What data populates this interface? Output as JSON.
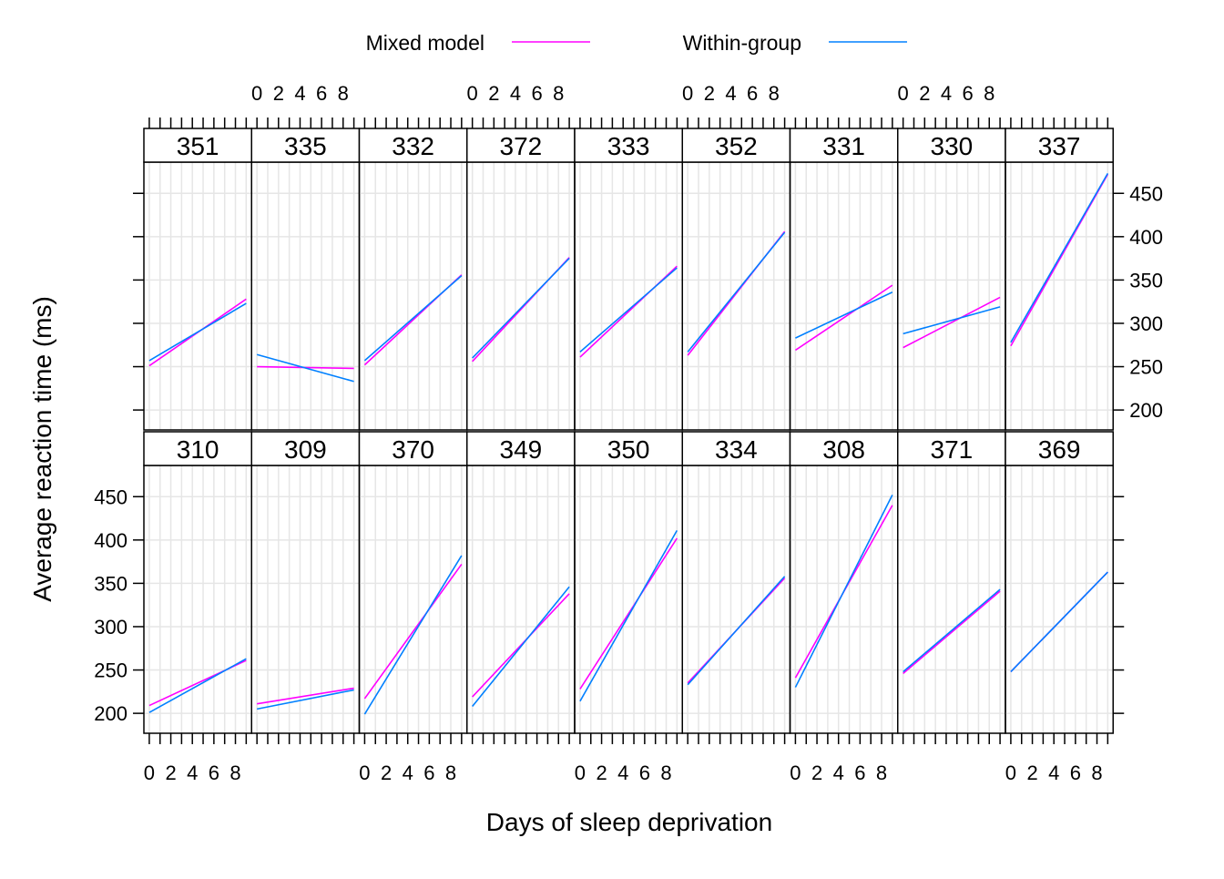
{
  "chart_data": {
    "type": "line",
    "xlabel": "Days of sleep deprivation",
    "ylabel": "Average reaction time (ms)",
    "xlim": [
      -0.5,
      9.5
    ],
    "ylim": [
      177,
      486
    ],
    "x_ticks": [
      0,
      1,
      2,
      3,
      4,
      5,
      6,
      7,
      8,
      9
    ],
    "x_tick_labels": [
      "0",
      "2",
      "4",
      "6",
      "8"
    ],
    "y_ticks": [
      200,
      250,
      300,
      350,
      400,
      450
    ],
    "y_tick_labels": [
      "200",
      "250",
      "300",
      "350",
      "400",
      "450"
    ],
    "grid": true,
    "legend_position": "top",
    "legend": [
      {
        "name": "Mixed model",
        "color": "#ff00ff"
      },
      {
        "name": "Within-group",
        "color": "#0080ff"
      }
    ],
    "colors": {
      "Mixed model": "#ff00ff",
      "Within-group": "#0080ff",
      "grid": "#e6e6e6",
      "strip": "#ffffff"
    },
    "panels": [
      {
        "subject": "310",
        "row": "bottom",
        "mixed": [
          209,
          261
        ],
        "within": [
          201,
          263
        ]
      },
      {
        "subject": "309",
        "row": "bottom",
        "mixed": [
          211,
          229
        ],
        "within": [
          205,
          227
        ]
      },
      {
        "subject": "370",
        "row": "bottom",
        "mixed": [
          217,
          372
        ],
        "within": [
          199,
          382
        ]
      },
      {
        "subject": "349",
        "row": "bottom",
        "mixed": [
          219,
          338
        ],
        "within": [
          208,
          346
        ]
      },
      {
        "subject": "350",
        "row": "bottom",
        "mixed": [
          228,
          402
        ],
        "within": [
          214,
          411
        ]
      },
      {
        "subject": "334",
        "row": "bottom",
        "mixed": [
          235,
          356
        ],
        "within": [
          233,
          358
        ]
      },
      {
        "subject": "308",
        "row": "bottom",
        "mixed": [
          241,
          440
        ],
        "within": [
          230,
          452
        ]
      },
      {
        "subject": "371",
        "row": "bottom",
        "mixed": [
          246,
          341
        ],
        "within": [
          248,
          343
        ]
      },
      {
        "subject": "369",
        "row": "bottom",
        "mixed": [
          248,
          363
        ],
        "within": [
          248,
          363
        ]
      },
      {
        "subject": "351",
        "row": "top",
        "mixed": [
          251,
          328
        ],
        "within": [
          257,
          323
        ]
      },
      {
        "subject": "335",
        "row": "top",
        "mixed": [
          250,
          248
        ],
        "within": [
          264,
          233
        ]
      },
      {
        "subject": "332",
        "row": "top",
        "mixed": [
          252,
          356
        ],
        "within": [
          257,
          355
        ]
      },
      {
        "subject": "372",
        "row": "top",
        "mixed": [
          256,
          376
        ],
        "within": [
          260,
          375
        ]
      },
      {
        "subject": "333",
        "row": "top",
        "mixed": [
          261,
          366
        ],
        "within": [
          267,
          364
        ]
      },
      {
        "subject": "352",
        "row": "top",
        "mixed": [
          263,
          406
        ],
        "within": [
          267,
          405
        ]
      },
      {
        "subject": "331",
        "row": "top",
        "mixed": [
          269,
          344
        ],
        "within": [
          283,
          336
        ]
      },
      {
        "subject": "330",
        "row": "top",
        "mixed": [
          272,
          330
        ],
        "within": [
          288,
          319
        ]
      },
      {
        "subject": "337",
        "row": "top",
        "mixed": [
          274,
          472
        ],
        "within": [
          278,
          473
        ]
      }
    ]
  }
}
